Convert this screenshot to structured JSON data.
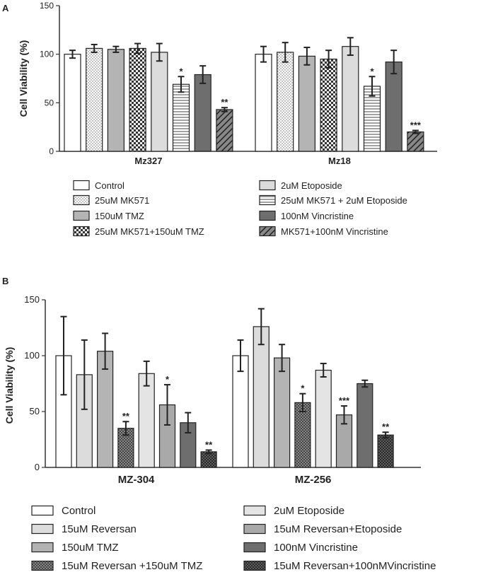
{
  "chart_data": [
    {
      "panel": "A",
      "type": "bar",
      "ylabel": "Cell Viability (%)",
      "ylim": [
        0,
        150
      ],
      "yticks": [
        0,
        50,
        100,
        150
      ],
      "groups": [
        "Mz327",
        "Mz18"
      ],
      "legend_columns": 2,
      "series": [
        {
          "name": "Control",
          "pattern": "white",
          "values": [
            100,
            100
          ],
          "errors": [
            4,
            8
          ],
          "sig": [
            "",
            ""
          ]
        },
        {
          "name": "25uM MK571",
          "pattern": "dots",
          "values": [
            106,
            102
          ],
          "errors": [
            4,
            10
          ],
          "sig": [
            "",
            ""
          ]
        },
        {
          "name": "150uM TMZ",
          "pattern": "gray",
          "values": [
            105,
            98
          ],
          "errors": [
            3,
            9
          ],
          "sig": [
            "",
            ""
          ]
        },
        {
          "name": "25uM MK571+150uM TMZ",
          "pattern": "checker",
          "values": [
            106,
            95
          ],
          "errors": [
            5,
            9
          ],
          "sig": [
            "",
            ""
          ]
        },
        {
          "name": "2uM Etoposide",
          "pattern": "lightgray",
          "values": [
            102,
            108
          ],
          "errors": [
            9,
            9
          ],
          "sig": [
            "",
            ""
          ]
        },
        {
          "name": "25uM MK571 + 2uM Etoposide",
          "pattern": "hlines",
          "values": [
            69,
            67
          ],
          "errors": [
            8,
            10
          ],
          "sig": [
            "*",
            "*"
          ]
        },
        {
          "name": "100nM Vincristine",
          "pattern": "darkgray",
          "values": [
            79,
            92
          ],
          "errors": [
            9,
            12
          ],
          "sig": [
            "",
            ""
          ]
        },
        {
          "name": "MK571+100nM Vincristine",
          "pattern": "diag",
          "values": [
            43,
            20
          ],
          "errors": [
            2,
            1.5
          ],
          "sig": [
            "**",
            "***"
          ]
        }
      ]
    },
    {
      "panel": "B",
      "type": "bar",
      "ylabel": "Cell Viability (%)",
      "ylim": [
        0,
        150
      ],
      "yticks": [
        0,
        50,
        100,
        150
      ],
      "groups": [
        "MZ-304",
        "MZ-256"
      ],
      "legend_columns": 2,
      "series": [
        {
          "name": "Control",
          "pattern": "white",
          "values": [
            100,
            100
          ],
          "errors": [
            35,
            14
          ],
          "sig": [
            "",
            ""
          ]
        },
        {
          "name": "15uM Reversan",
          "pattern": "lightgray",
          "values": [
            83,
            126
          ],
          "errors": [
            31,
            16
          ],
          "sig": [
            "",
            ""
          ]
        },
        {
          "name": "150uM TMZ",
          "pattern": "gray",
          "values": [
            104,
            98
          ],
          "errors": [
            16,
            12
          ],
          "sig": [
            "",
            ""
          ]
        },
        {
          "name": "15uM Reversan +150uM TMZ",
          "pattern": "crosshatch",
          "values": [
            35,
            58
          ],
          "errors": [
            6,
            8
          ],
          "sig": [
            "**",
            "*"
          ]
        },
        {
          "name": "2uM Etoposide",
          "pattern": "lightgray2",
          "values": [
            84,
            87
          ],
          "errors": [
            11,
            6
          ],
          "sig": [
            "",
            ""
          ]
        },
        {
          "name": "15uM Reversan+Etoposide",
          "pattern": "midgray",
          "values": [
            56,
            47
          ],
          "errors": [
            18,
            8
          ],
          "sig": [
            "*",
            "***"
          ]
        },
        {
          "name": "100nM Vincristine",
          "pattern": "darkgray",
          "values": [
            40,
            75
          ],
          "errors": [
            9,
            3
          ],
          "sig": [
            "",
            ""
          ]
        },
        {
          "name": "15uM Reversan+100nMVincristine",
          "pattern": "crosshatch2",
          "values": [
            14,
            29
          ],
          "errors": [
            1.5,
            2.5
          ],
          "sig": [
            "**",
            "**"
          ]
        }
      ]
    }
  ]
}
